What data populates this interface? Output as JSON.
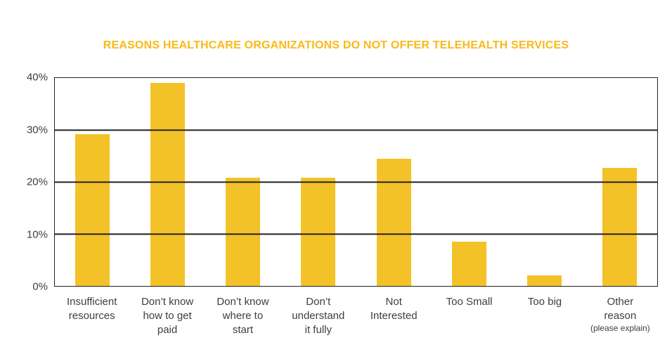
{
  "chart_data": {
    "type": "bar",
    "title": "REASONS HEALTHCARE ORGANIZATIONS DO NOT OFFER TELEHEALTH SERVICES",
    "categories": [
      {
        "lines": [
          "Insufficient",
          "resources"
        ]
      },
      {
        "lines": [
          "Don’t know",
          "how to get",
          "paid"
        ]
      },
      {
        "lines": [
          "Don’t know",
          "where to",
          "start"
        ]
      },
      {
        "lines": [
          "Don’t",
          "understand",
          "it fully"
        ]
      },
      {
        "lines": [
          "Not",
          "Interested"
        ]
      },
      {
        "lines": [
          "Too Small"
        ]
      },
      {
        "lines": [
          "Too big"
        ]
      },
      {
        "lines": [
          "Other",
          "reason"
        ],
        "note": "(please explain)"
      }
    ],
    "values": [
      29.2,
      39.1,
      20.8,
      20.8,
      24.5,
      8.5,
      2.0,
      22.7
    ],
    "xlabel": "",
    "ylabel": "",
    "ylim": [
      0,
      40
    ],
    "yticks": [
      {
        "value": 40,
        "label": "40%"
      },
      {
        "value": 30,
        "label": "30%"
      },
      {
        "value": 20,
        "label": "20%"
      },
      {
        "value": 10,
        "label": "10%"
      },
      {
        "value": 0,
        "label": "0%"
      }
    ],
    "grid": true,
    "legend": "none",
    "colors": {
      "bar": "#F3C229",
      "title": "#FBB817",
      "axis": "#262223",
      "tick_label": "#3E3D40",
      "category_label": "#3E3D40",
      "background": "#FFFFFF"
    }
  }
}
